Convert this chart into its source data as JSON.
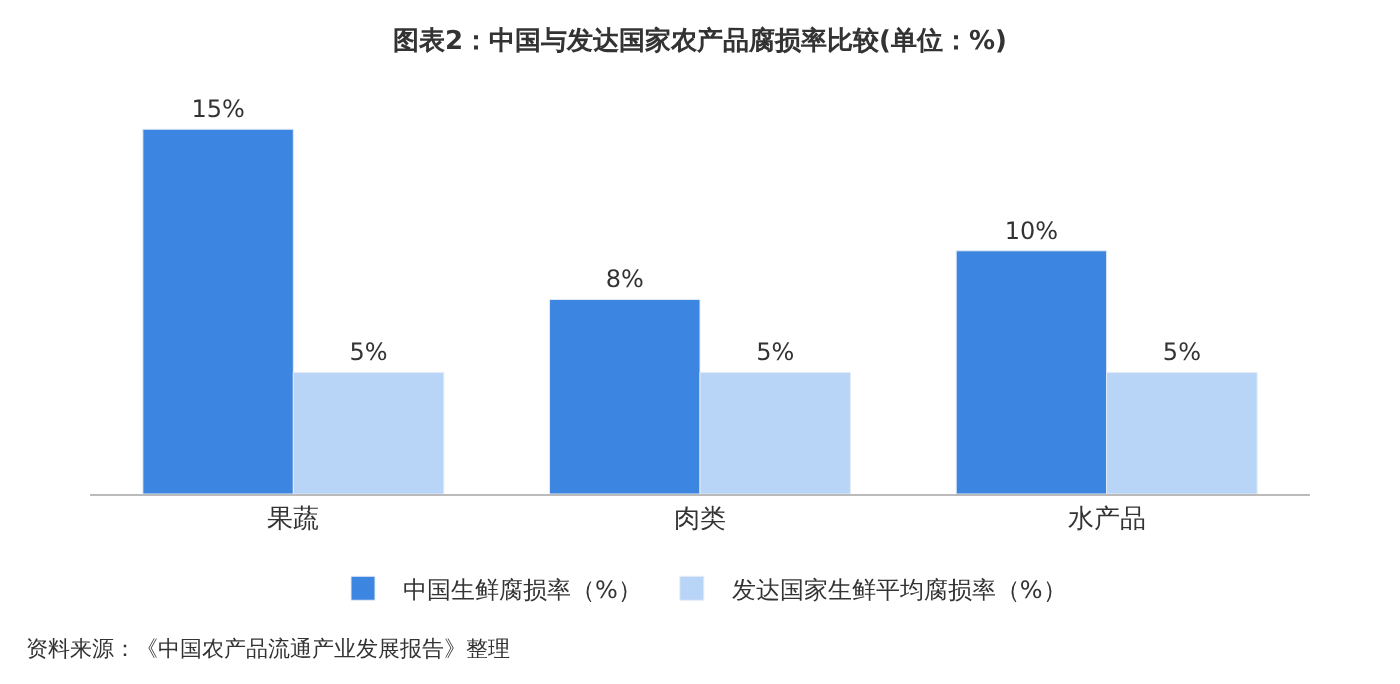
{
  "chart_data": {
    "type": "bar",
    "title": "图表2：中国与发达国家农产品腐损率比较(单位：%)",
    "categories": [
      "果蔬",
      "肉类",
      "水产品"
    ],
    "series": [
      {
        "name": "中国生鲜腐损率（%）",
        "color": "#3c85e0",
        "values": [
          15,
          8,
          10
        ],
        "value_labels": [
          "15%",
          "8%",
          "10%"
        ]
      },
      {
        "name": "发达国家生鲜平均腐损率（%）",
        "color": "#b8d4f6",
        "values": [
          5,
          5,
          5
        ],
        "value_labels": [
          "5%",
          "5%",
          "5%"
        ]
      }
    ],
    "tick_labels": "x",
    "legend": "bottom",
    "annotations": [
      "资料来源：《中国农产品流通产业发展报告》整理"
    ]
  }
}
